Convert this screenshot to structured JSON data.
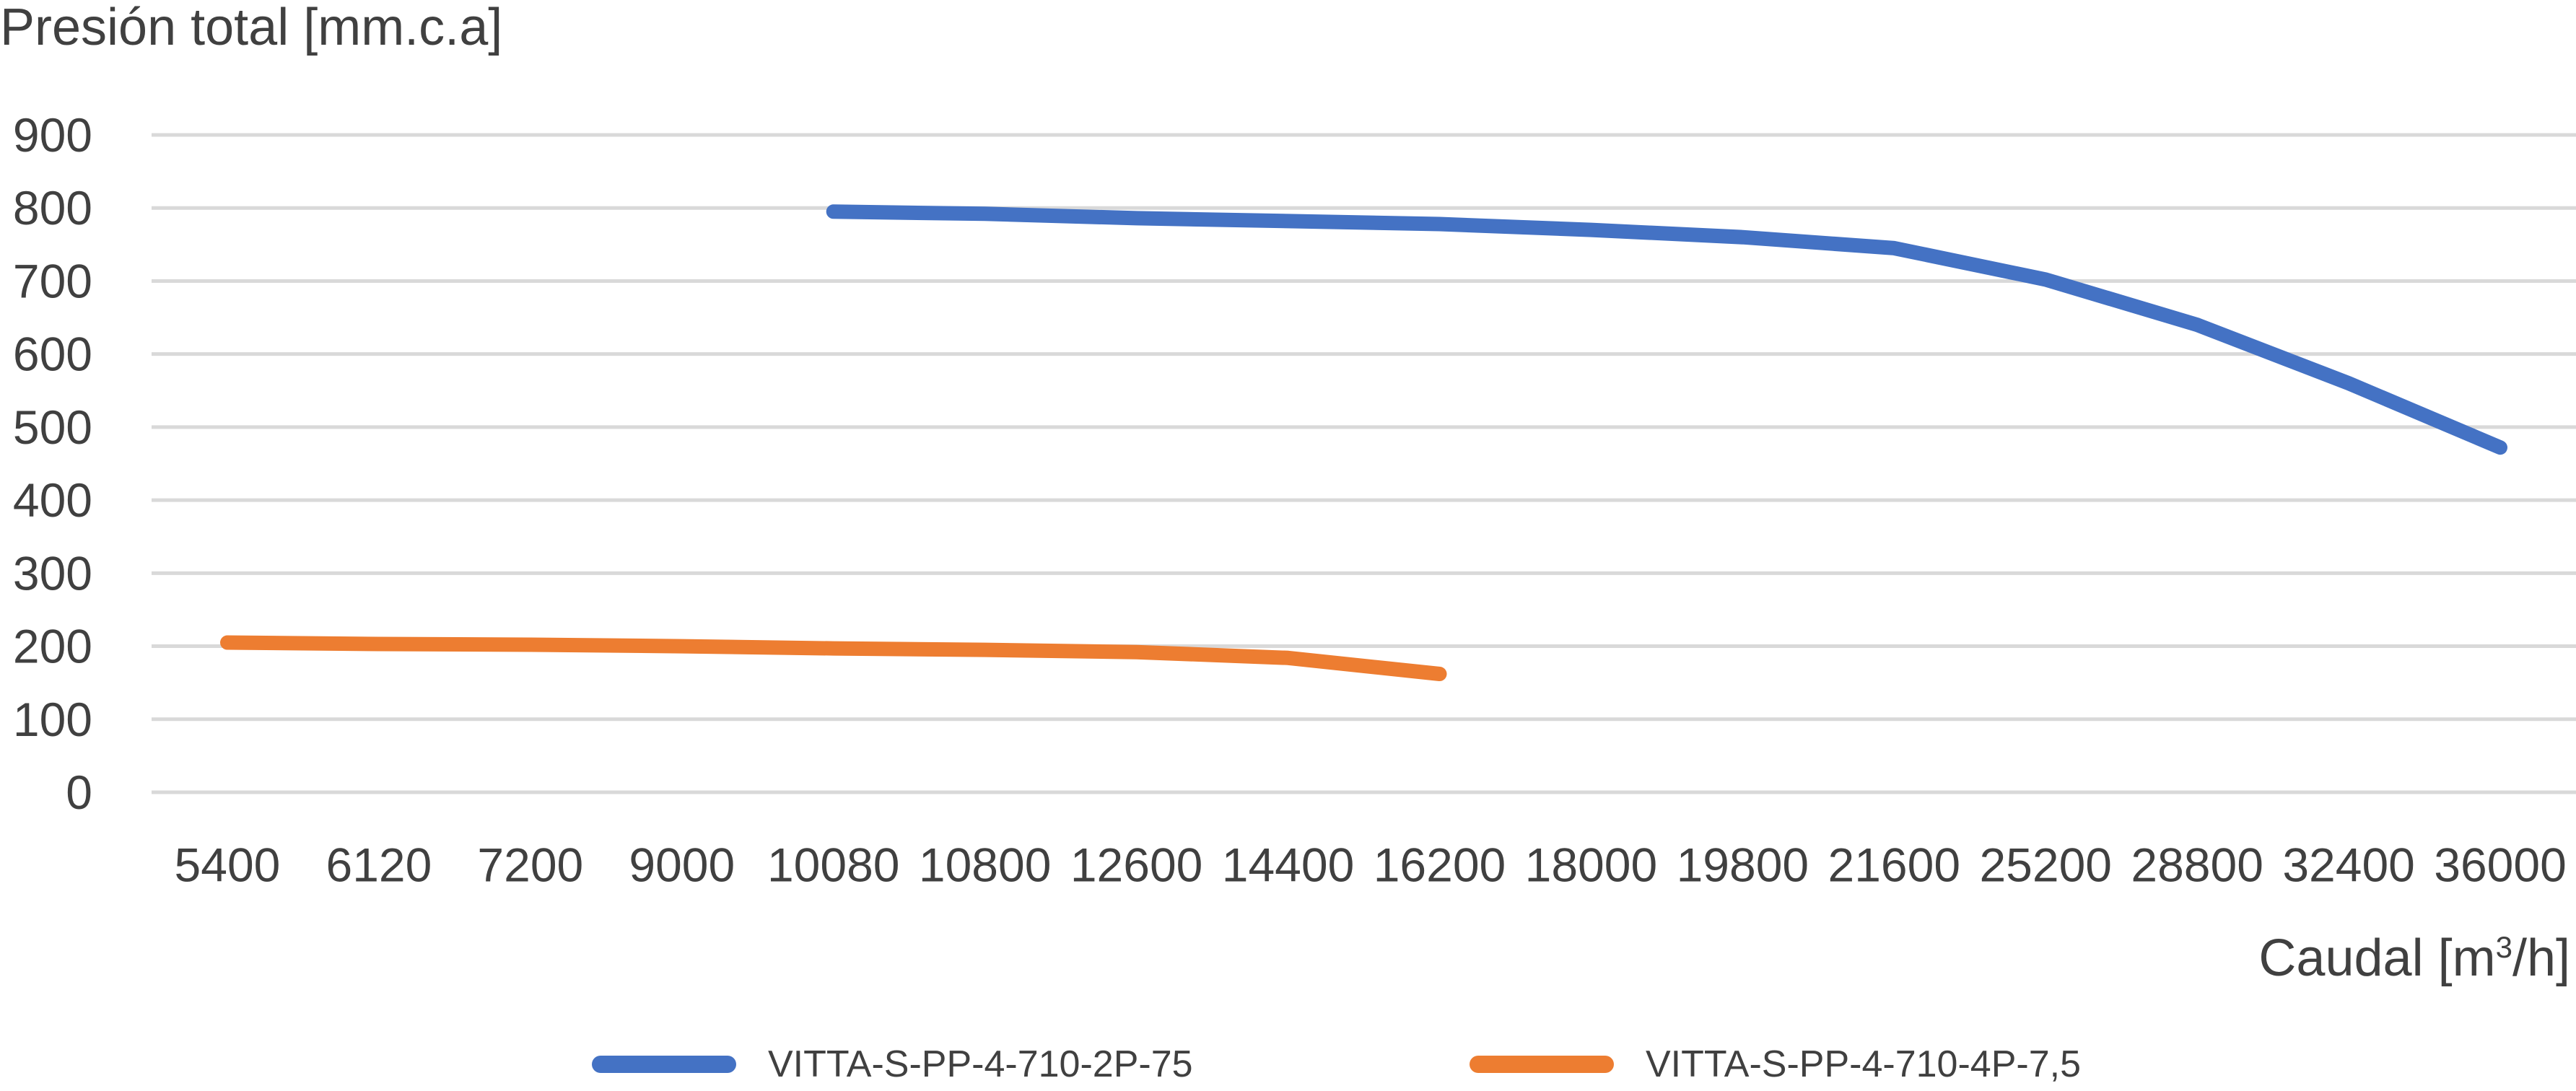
{
  "chart_data": {
    "type": "line",
    "title": "",
    "ylabel": "Presión total [mm.c.a]",
    "xlabel_main": "Caudal [m",
    "xlabel_sup": "3",
    "xlabel_end": "/h]",
    "categories": [
      "5400",
      "6120",
      "7200",
      "9000",
      "10080",
      "10800",
      "12600",
      "14400",
      "16200",
      "18000",
      "19800",
      "21600",
      "25200",
      "28800",
      "32400",
      "36000"
    ],
    "yticks": [
      0,
      100,
      200,
      300,
      400,
      500,
      600,
      700,
      800,
      900
    ],
    "ylim": [
      0,
      900
    ],
    "grid": true,
    "legend_position": "bottom",
    "series": [
      {
        "name": "VITTA-S-PP-4-710-2P-75",
        "color": "#4472C4",
        "values": [
          null,
          null,
          null,
          null,
          795,
          792,
          786,
          782,
          778,
          770,
          760,
          745,
          702,
          640,
          560,
          472
        ]
      },
      {
        "name": "VITTA-S-PP-4-710-4P-7,5",
        "color": "#ED7D31",
        "values": [
          205,
          203,
          202,
          200,
          197,
          195,
          192,
          184,
          162,
          null,
          null,
          null,
          null,
          null,
          null,
          null
        ]
      }
    ]
  }
}
